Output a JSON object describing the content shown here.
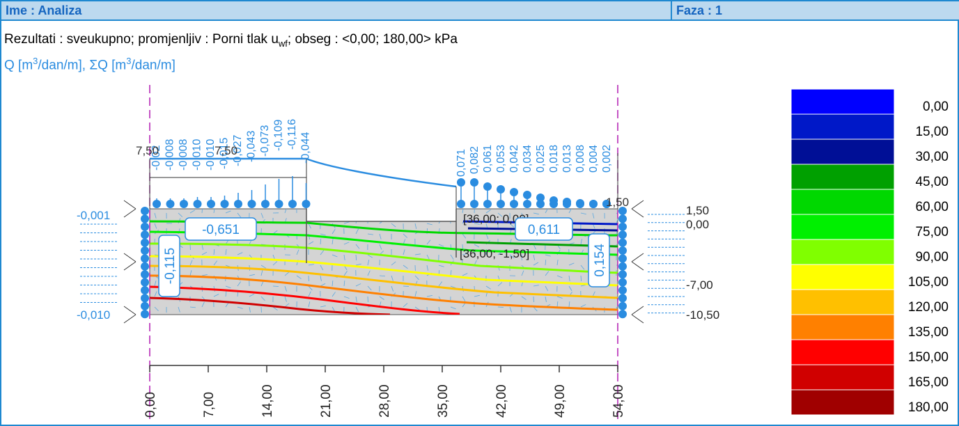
{
  "header": {
    "name_label": "Ime : Analiza",
    "phase_label": "Faza : 1"
  },
  "info": {
    "results_prefix": "Rezultati : sveukupno; promjenljiv : Porni tlak u",
    "results_sub": "wf",
    "results_suffix": "; obseg : <0,00; 180,00> kPa",
    "flow_q": "Q [m",
    "flow_sup": "3",
    "flow_mid": "/dan/m], ΣQ [m",
    "flow_end": "/dan/m]"
  },
  "colors": {
    "frame": "#1e88d0",
    "accent": "#2a8ce0",
    "header_bg": "#bcd9ef"
  },
  "legend": [
    {
      "label": "0,00",
      "color": "#0000ff"
    },
    {
      "label": "15,00",
      "color": "#0018c8"
    },
    {
      "label": "30,00",
      "color": "#000f96"
    },
    {
      "label": "45,00",
      "color": "#00a000"
    },
    {
      "label": "60,00",
      "color": "#00d800"
    },
    {
      "label": "75,00",
      "color": "#00f000"
    },
    {
      "label": "90,00",
      "color": "#80ff00"
    },
    {
      "label": "105,00",
      "color": "#ffff00"
    },
    {
      "label": "120,00",
      "color": "#ffc000"
    },
    {
      "label": "135,00",
      "color": "#ff8000"
    },
    {
      "label": "150,00",
      "color": "#ff0000"
    },
    {
      "label": "165,00",
      "color": "#d00000"
    },
    {
      "label": "180,00",
      "color": "#a00000"
    }
  ],
  "x_ticks": [
    "0,00",
    "7,00",
    "14,00",
    "21,00",
    "28,00",
    "35,00",
    "42,00",
    "49,00",
    "54,00"
  ],
  "right_depths": [
    "1,50",
    "0,00",
    "-7,00",
    "-10,50"
  ],
  "left_flux_top": "-0,001",
  "left_flux_bottom": "-0,010",
  "boxes": {
    "left_total": "-0,651",
    "right_total": "0,611",
    "left_side": "-0,115",
    "right_side": "0,154"
  },
  "points": {
    "p1": "[36,00; 0,00]",
    "p2": "[36,00; -1,50]"
  },
  "dims": {
    "a": "7,50",
    "b": "7,50",
    "c": "1,50"
  },
  "top_flux_left": [
    "-0,02",
    "-0,008",
    "-0,008",
    "-0,010",
    "-0,010",
    "-0,015",
    "-0,027",
    "-0,043",
    "-0,073",
    "-0,109",
    "-0,116",
    "-0,044"
  ],
  "top_flux_right": [
    "0,071",
    "0,082",
    "0,061",
    "0,053",
    "0,042",
    "0,034",
    "0,025",
    "0,018",
    "0,013",
    "0,008",
    "0,004",
    "0,002"
  ]
}
